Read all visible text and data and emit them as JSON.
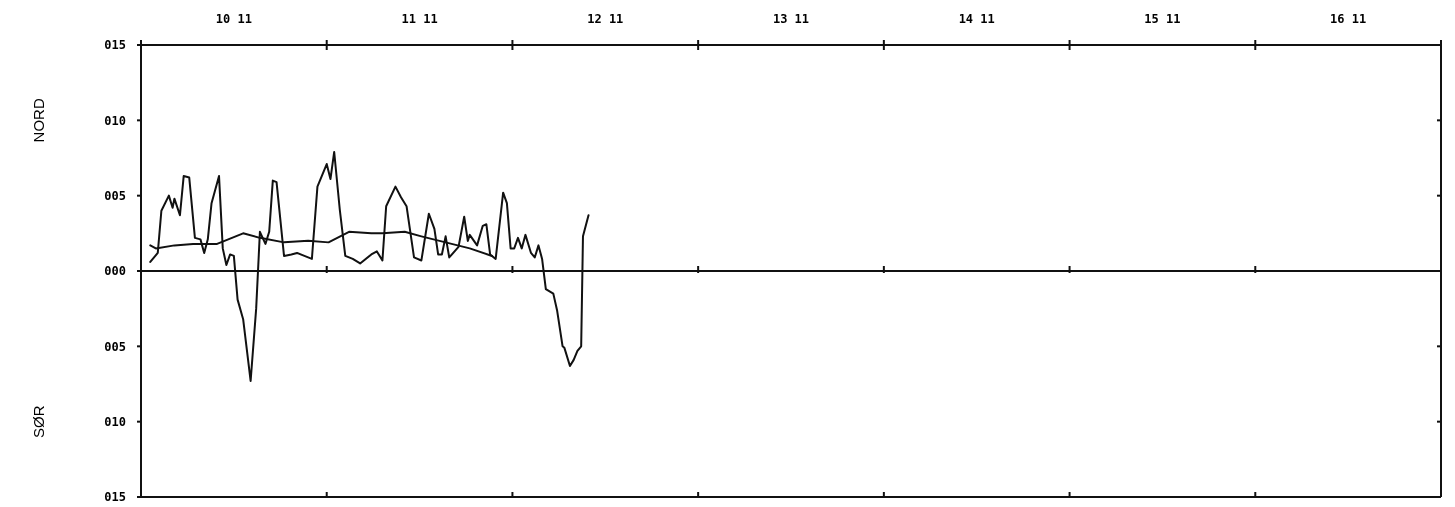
{
  "chart_data": {
    "type": "line",
    "ylabel": "NORD",
    "annotations": [
      "SØR"
    ],
    "xlim": [
      "--11-10",
      "--11-17"
    ],
    "ylim": [
      -15,
      15
    ],
    "xticks": [
      {
        "value": "--11-10",
        "label": null
      },
      {
        "value": "--11-10T12:00",
        "label": "10 11"
      },
      {
        "value": "--11-11",
        "label": null
      },
      {
        "value": "--11-11T12:00",
        "label": "11 11"
      },
      {
        "value": "--11-12",
        "label": null
      },
      {
        "value": "--11-12T12:00",
        "label": "12 11"
      },
      {
        "value": "--11-13",
        "label": null
      },
      {
        "value": "--11-13T12:00",
        "label": "13 11"
      },
      {
        "value": "--11-14",
        "label": null
      },
      {
        "value": "--11-14T12:00",
        "label": "14 11"
      },
      {
        "value": "--11-15",
        "label": null
      },
      {
        "value": "--11-15T12:00",
        "label": "15 11"
      },
      {
        "value": "--11-16",
        "label": null
      },
      {
        "value": "--11-16T12:00",
        "label": "16 11"
      },
      {
        "value": "--11-17",
        "label": null
      }
    ],
    "yticks": [
      {
        "value": 15,
        "label": "015"
      },
      {
        "value": 10,
        "label": "010"
      },
      {
        "value": 5,
        "label": "005"
      },
      {
        "value": 0,
        "label": "000"
      },
      {
        "value": -5,
        "label": "005"
      },
      {
        "value": -10,
        "label": "010"
      },
      {
        "value": -15,
        "label": "015"
      }
    ],
    "grid": false,
    "marker": "none",
    "line_style": "solid",
    "ref_lines": [
      {
        "axis": "y",
        "value": 0
      }
    ],
    "series": [
      {
        "color": "#111111",
        "x": [
          "--11-10T01:12",
          "--11-10T02:10",
          "--11-10T02:38",
          "--11-10T03:36",
          "--11-10T04:05",
          "--11-10T04:19",
          "--11-10T05:02",
          "--11-10T05:31",
          "--11-10T06:14",
          "--11-10T06:58",
          "--11-10T07:41",
          "--11-10T08:10",
          "--11-10T08:38",
          "--11-10T09:07",
          "--11-10T10:05",
          "--11-10T10:34",
          "--11-10T11:02",
          "--11-10T11:31",
          "--11-10T12:00",
          "--11-10T12:29",
          "--11-10T13:12",
          "--11-10T14:10",
          "--11-10T14:53",
          "--11-10T15:22",
          "--11-10T16:05",
          "--11-10T16:34",
          "--11-10T17:02",
          "--11-10T17:31",
          "--11-10T18:29",
          "--11-10T19:26",
          "--11-10T20:10",
          "--11-10T21:07",
          "--11-10T22:05",
          "--11-10T22:48",
          "--11-11T00:00",
          "--11-11T00:29",
          "--11-11T00:58",
          "--11-11T01:41",
          "--11-11T02:24",
          "--11-11T03:22",
          "--11-11T04:19",
          "--11-11T05:46",
          "--11-11T06:29",
          "--11-11T07:12",
          "--11-11T07:41",
          "--11-11T08:53",
          "--11-11T09:36",
          "--11-11T10:19",
          "--11-11T11:17",
          "--11-11T12:14",
          "--11-11T13:12",
          "--11-11T13:55",
          "--11-11T14:24",
          "--11-11T14:53",
          "--11-11T15:22",
          "--11-11T15:50",
          "--11-11T17:02",
          "--11-11T17:46",
          "--11-11T18:14",
          "--11-11T18:29",
          "--11-11T19:26",
          "--11-11T20:10",
          "--11-11T20:38",
          "--11-11T21:07",
          "--11-11T21:50",
          "--11-11T22:48",
          "--11-11T23:17",
          "--11-11T23:46",
          "--11-12T00:14",
          "--11-12T00:43",
          "--11-12T01:12",
          "--11-12T01:41",
          "--11-12T02:24",
          "--11-12T02:53",
          "--11-12T03:22",
          "--11-12T03:50",
          "--11-12T04:19",
          "--11-12T05:17",
          "--11-12T05:46",
          "--11-12T06:29",
          "--11-12T06:43",
          "--11-12T07:26",
          "--11-12T07:55",
          "--11-12T08:24",
          "--11-12T08:53",
          "--11-12T09:07",
          "--11-12T09:50"
        ],
        "values": [
          0.6,
          1.2,
          4.0,
          5.0,
          4.2,
          4.8,
          3.7,
          6.3,
          6.2,
          2.2,
          2.1,
          1.2,
          2.1,
          4.5,
          6.3,
          1.5,
          0.4,
          1.1,
          1.0,
          -1.9,
          -3.2,
          -7.3,
          -2.5,
          2.6,
          1.8,
          2.6,
          6.0,
          5.9,
          1.0,
          1.1,
          1.2,
          1.0,
          0.8,
          5.6,
          7.1,
          6.1,
          7.9,
          4.1,
          1.0,
          0.8,
          0.5,
          1.1,
          1.3,
          0.7,
          4.3,
          5.6,
          4.9,
          4.3,
          0.9,
          0.7,
          3.8,
          2.8,
          1.1,
          1.1,
          2.3,
          0.9,
          1.6,
          3.6,
          2.0,
          2.4,
          1.7,
          3.0,
          3.1,
          1.1,
          0.8,
          5.2,
          4.5,
          1.5,
          1.5,
          2.2,
          1.5,
          2.4,
          1.2,
          0.9,
          1.7,
          0.8,
          -1.2,
          -1.5,
          -2.6,
          -5.0,
          -5.1,
          -6.3,
          -5.9,
          -5.3,
          -5.0,
          2.3,
          3.7
        ]
      },
      {
        "color": "#111111",
        "x": [
          "--11-10T01:12",
          "--11-10T01:55",
          "--11-10T04:19",
          "--11-10T06:43",
          "--11-10T09:50",
          "--11-10T13:12",
          "--11-10T15:22",
          "--11-10T18:29",
          "--11-10T21:36",
          "--11-11T00:14",
          "--11-11T02:53",
          "--11-11T05:46",
          "--11-11T07:12",
          "--11-11T10:05",
          "--11-11T12:14",
          "--11-11T15:22",
          "--11-11T18:29",
          "--11-11T21:22"
        ],
        "values": [
          1.7,
          1.5,
          1.7,
          1.8,
          1.8,
          2.5,
          2.2,
          1.9,
          2.0,
          1.9,
          2.6,
          2.5,
          2.5,
          2.6,
          2.3,
          1.9,
          1.5,
          1.0
        ]
      }
    ]
  }
}
